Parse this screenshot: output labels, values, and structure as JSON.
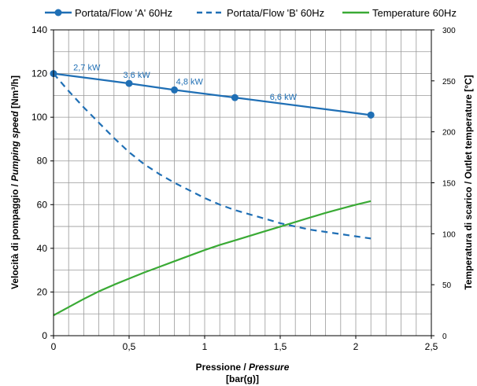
{
  "chart_data": {
    "type": "line",
    "x": [
      0,
      0.1,
      0.2,
      0.3,
      0.4,
      0.5,
      0.6,
      0.7,
      0.8,
      0.9,
      1.0,
      1.1,
      1.2,
      1.3,
      1.4,
      1.5,
      1.6,
      1.7,
      1.8,
      1.9,
      2.0,
      2.1
    ],
    "xlim": [
      0,
      2.5
    ],
    "xticks": [
      "0",
      "0,5",
      "1",
      "1,5",
      "2",
      "2,5"
    ],
    "xtick_values": [
      0,
      0.5,
      1,
      1.5,
      2,
      2.5
    ],
    "xlabel_main": "Pressione / ",
    "xlabel_italic": "Pressure",
    "xlabel_unit": "[bar(g)]",
    "ylim": [
      0,
      140
    ],
    "yticks": [
      "0",
      "20",
      "40",
      "60",
      "80",
      "100",
      "120",
      "140"
    ],
    "ytick_values": [
      0,
      20,
      40,
      60,
      80,
      100,
      120,
      140
    ],
    "ylabel_main": "Velocità di pompaggio / ",
    "ylabel_italic": "Pumping speed",
    "ylabel_unit": " [Nm³/h]",
    "y2lim": [
      0,
      300
    ],
    "y2ticks": [
      "0",
      "50",
      "100",
      "150",
      "200",
      "250",
      "300"
    ],
    "y2tick_values": [
      0,
      50,
      100,
      150,
      200,
      250,
      300
    ],
    "y2label": "Temperatura di scarico / Outlet temperature [°C]",
    "grid": true,
    "legend_position": "top",
    "series": [
      {
        "name": "Portata/Flow 'A' 60Hz",
        "color": "#1f6fb5",
        "style": "solid",
        "axis": "left",
        "markers": true,
        "x": [
          0,
          0.5,
          0.8,
          1.2,
          2.1
        ],
        "values": [
          120,
          115.5,
          112.5,
          109,
          101
        ]
      },
      {
        "name": "Portata/Flow 'B' 60Hz",
        "color": "#1f6fb5",
        "style": "dashed",
        "axis": "left",
        "markers": false,
        "x": [
          0,
          0.1,
          0.2,
          0.3,
          0.4,
          0.5,
          0.6,
          0.7,
          0.8,
          0.9,
          1.0,
          1.1,
          1.2,
          1.3,
          1.4,
          1.5,
          1.6,
          1.7,
          1.8,
          1.9,
          2.0,
          2.1
        ],
        "values": [
          120,
          112,
          104.5,
          97.5,
          90.5,
          84,
          78.5,
          74,
          70,
          66.5,
          63,
          60,
          57.5,
          55.5,
          53.5,
          51.5,
          50,
          48.5,
          47.5,
          46.5,
          45.5,
          44.5
        ]
      },
      {
        "name": "Temperature 60Hz",
        "color": "#3aaa35",
        "style": "solid",
        "axis": "right",
        "markers": false,
        "x": [
          0,
          0.1,
          0.2,
          0.3,
          0.4,
          0.5,
          0.6,
          0.7,
          0.8,
          0.9,
          1.0,
          1.1,
          1.2,
          1.3,
          1.4,
          1.5,
          1.6,
          1.7,
          1.8,
          1.9,
          2.0,
          2.1
        ],
        "values": [
          20,
          28,
          36,
          43.5,
          50,
          56,
          62,
          67.5,
          73,
          78.5,
          84,
          89,
          93.5,
          98,
          102.5,
          107,
          111.5,
          116,
          120.5,
          124.5,
          128.5,
          132
        ]
      }
    ],
    "annotations": [
      {
        "text": "2,7 kW",
        "x": 0.22,
        "y": 121.5
      },
      {
        "text": "3,6 kW",
        "x": 0.55,
        "y": 118
      },
      {
        "text": "4,8 kW",
        "x": 0.9,
        "y": 115
      },
      {
        "text": "6,6 kW",
        "x": 1.52,
        "y": 108
      }
    ]
  }
}
